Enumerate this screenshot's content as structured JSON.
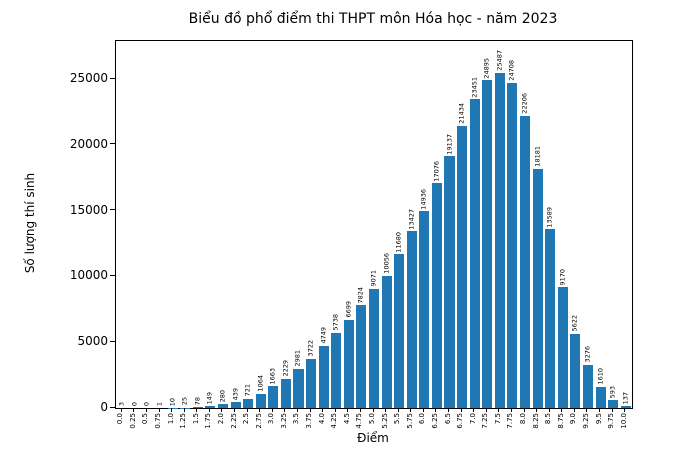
{
  "figure": {
    "background": "#ffffff"
  },
  "chart_data": {
    "type": "bar",
    "title": "Biểu đồ phổ điểm thi THPT môn Hóa học - năm 2023",
    "xlabel": "Điểm",
    "ylabel": "Số lượng thí sinh",
    "categories": [
      "0.0",
      "0.25",
      "0.5",
      "0.75",
      "1.0",
      "1.25",
      "1.5",
      "1.75",
      "2.0",
      "2.25",
      "2.5",
      "2.75",
      "3.0",
      "3.25",
      "3.5",
      "3.75",
      "4.0",
      "4.25",
      "4.5",
      "4.75",
      "5.0",
      "5.25",
      "5.5",
      "5.75",
      "6.0",
      "6.25",
      "6.5",
      "6.75",
      "7.0",
      "7.25",
      "7.5",
      "7.75",
      "8.0",
      "8.25",
      "8.5",
      "8.75",
      "9.0",
      "9.25",
      "9.5",
      "9.75",
      "10.0"
    ],
    "values": [
      3,
      0,
      0,
      1,
      10,
      25,
      78,
      149,
      280,
      439,
      721,
      1064,
      1663,
      2229,
      2981,
      3722,
      4749,
      5738,
      6699,
      7824,
      9071,
      10056,
      11680,
      13427,
      14936,
      17076,
      19137,
      21434,
      23451,
      24895,
      25487,
      24708,
      22206,
      18181,
      13589,
      9170,
      5622,
      3276,
      1610,
      593,
      137
    ],
    "bar_value_labels": [
      "3",
      "0",
      "0",
      "1",
      "10",
      "25",
      "78",
      "149",
      "280",
      "439",
      "721",
      "1064",
      "1663",
      "2229",
      "2981",
      "3722",
      "4749",
      "5738",
      "6699",
      "7824",
      "9071",
      "10056",
      "11680",
      "13427",
      "14936",
      "17076",
      "19137",
      "21434",
      "23451",
      "24895",
      "25487",
      "24708",
      "22206",
      "18181",
      "13589",
      "9170",
      "5622",
      "3276",
      "1610",
      "593",
      "137"
    ],
    "yticks": [
      0,
      5000,
      10000,
      15000,
      20000,
      25000
    ],
    "ytick_labels": [
      "0",
      "5000",
      "10000",
      "15000",
      "20000",
      "25000"
    ],
    "ylim": [
      0,
      27890
    ],
    "bar_color": "#1f77b4",
    "axis_color": "#000000",
    "grid": false,
    "legend_position": "none"
  }
}
